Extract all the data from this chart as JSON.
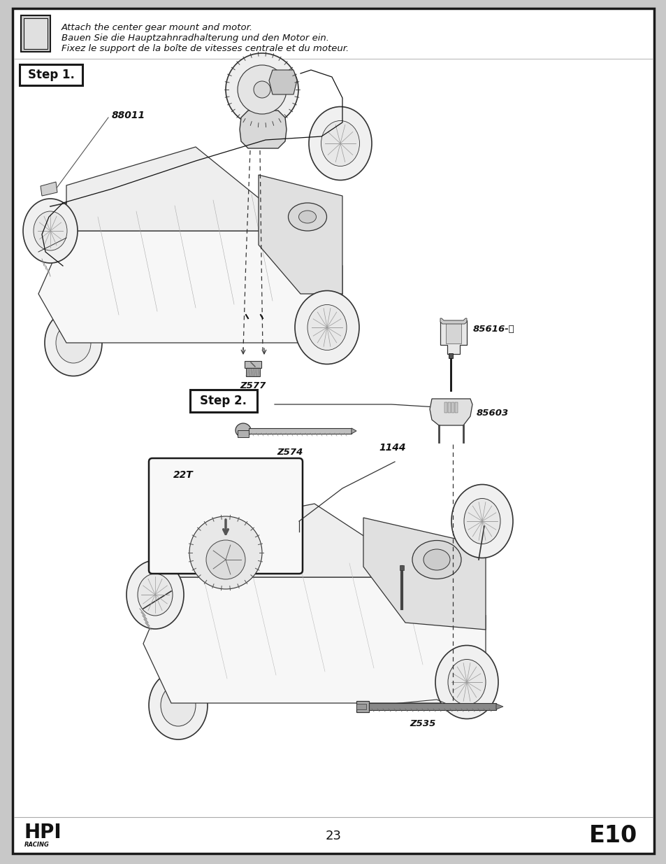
{
  "page_bg": "#c8c8c8",
  "content_bg": "#ffffff",
  "border_color": "#1a1a1a",
  "title_line1": "Attach the center gear mount and motor.",
  "title_line2": "Bauen Sie die Hauptzahnradhalterung und den Motor ein.",
  "title_line3": "Fixez le support de la boîte de vitesses centrale et du moteur.",
  "step1_label": "Step 1.",
  "step2_label": "Step 2.",
  "label_88011": "88011",
  "label_Z577": "Z577",
  "label_85616": "85616-ⓑ",
  "label_85603": "85603",
  "label_Z574": "Z574",
  "label_1144": "1144",
  "label_22T": "22T",
  "label_Z535": "Z535",
  "page_number": "23",
  "model": "E10"
}
